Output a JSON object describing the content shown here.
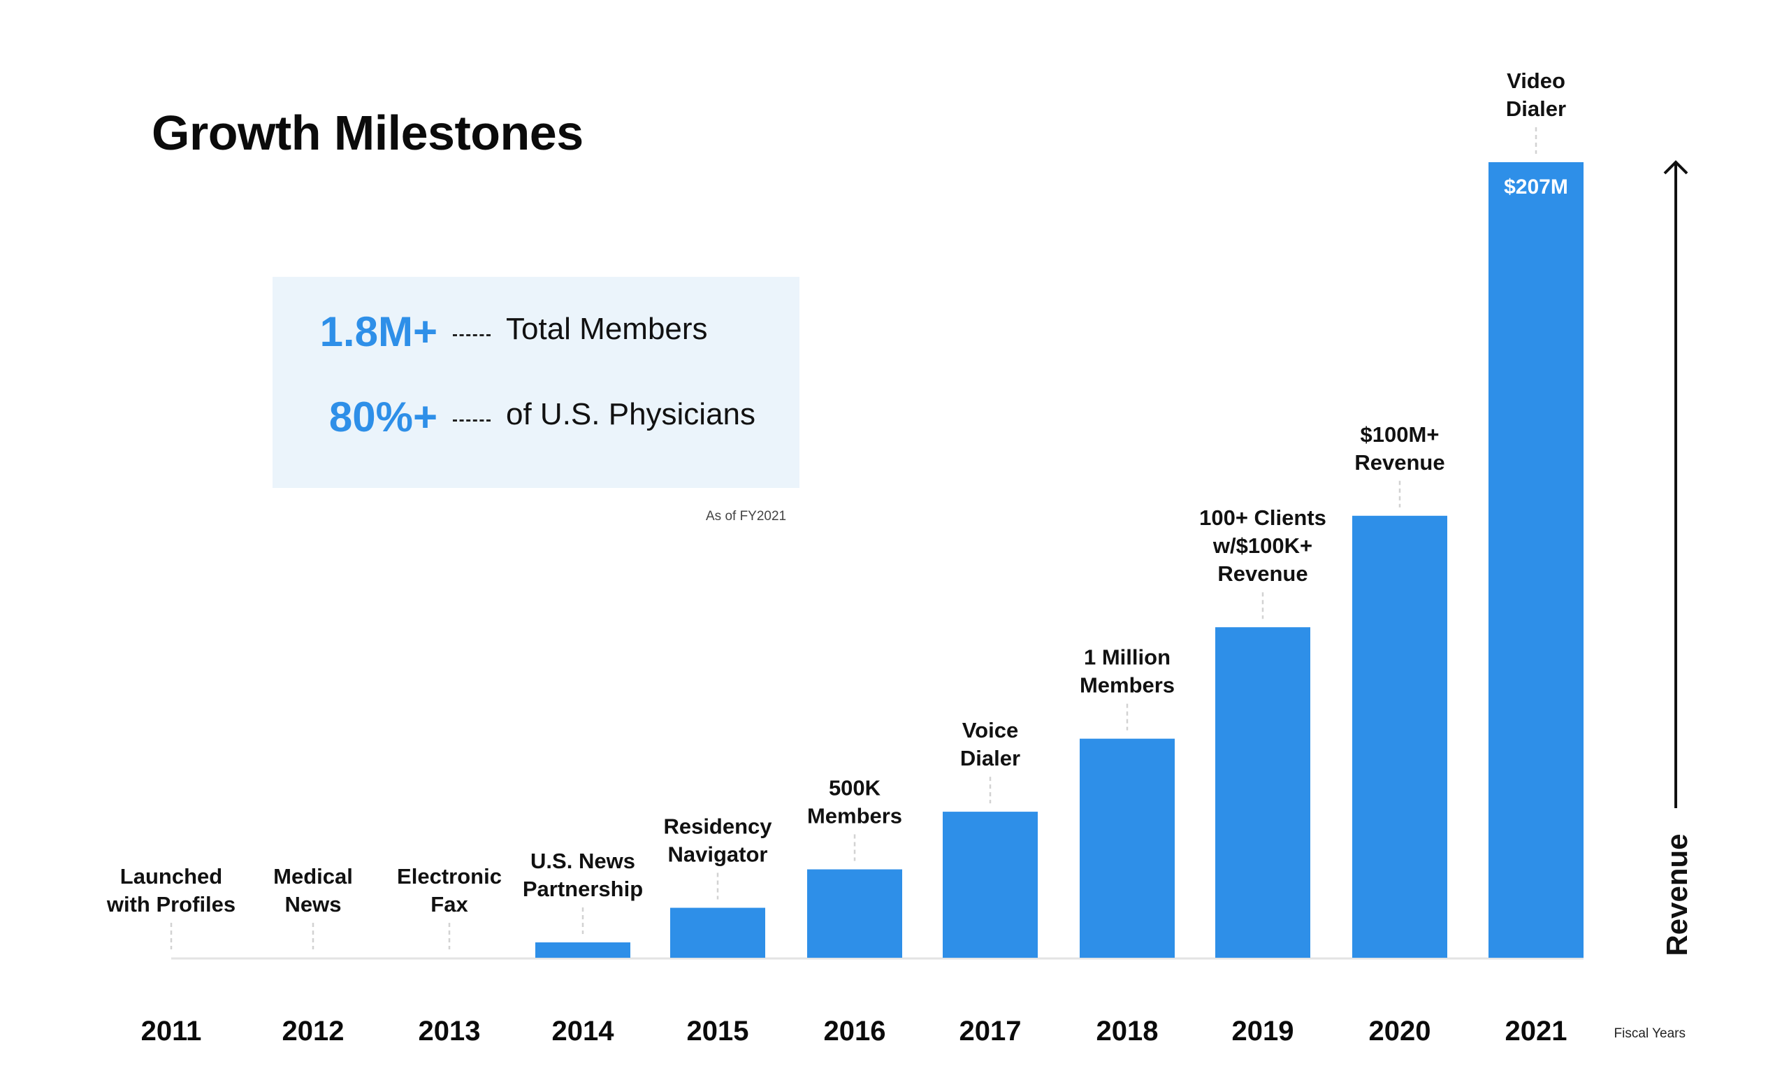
{
  "title": "Growth Milestones",
  "stats": [
    {
      "value": "1.8M+",
      "label": "Total Members"
    },
    {
      "value": "80%+",
      "label": "of U.S. Physicians"
    }
  ],
  "as_of": "As of FY2021",
  "colors": {
    "bar": "#2e8fe8",
    "stat_value": "#2e8fe8",
    "stats_bg": "#ebf4fb",
    "text": "#0b0b0b"
  },
  "chart_data": {
    "type": "bar",
    "categories": [
      "2011",
      "2012",
      "2013",
      "2014",
      "2015",
      "2016",
      "2017",
      "2018",
      "2019",
      "2020",
      "2021"
    ],
    "values": [
      0,
      0,
      0,
      4,
      13,
      23,
      38,
      57,
      86,
      115,
      207
    ],
    "value_labels": [
      "",
      "",
      "",
      "",
      "",
      "",
      "",
      "",
      "",
      "",
      "$207M"
    ],
    "milestones": [
      [
        "Launched",
        "with Profiles"
      ],
      [
        "Medical",
        "News"
      ],
      [
        "Electronic",
        "Fax"
      ],
      [
        "U.S. News",
        "Partnership"
      ],
      [
        "Residency",
        "Navigator"
      ],
      [
        "500K",
        "Members"
      ],
      [
        "Voice",
        "Dialer"
      ],
      [
        "1 Million",
        "Members"
      ],
      [
        "100+ Clients",
        "w/$100K+",
        "Revenue"
      ],
      [
        "$100M+",
        "Revenue"
      ],
      [
        "Video",
        "Dialer"
      ]
    ],
    "ylabel": "Revenue",
    "xlabel": "Fiscal Years",
    "ylim": [
      0,
      207
    ],
    "grid": false,
    "legend": "none"
  }
}
